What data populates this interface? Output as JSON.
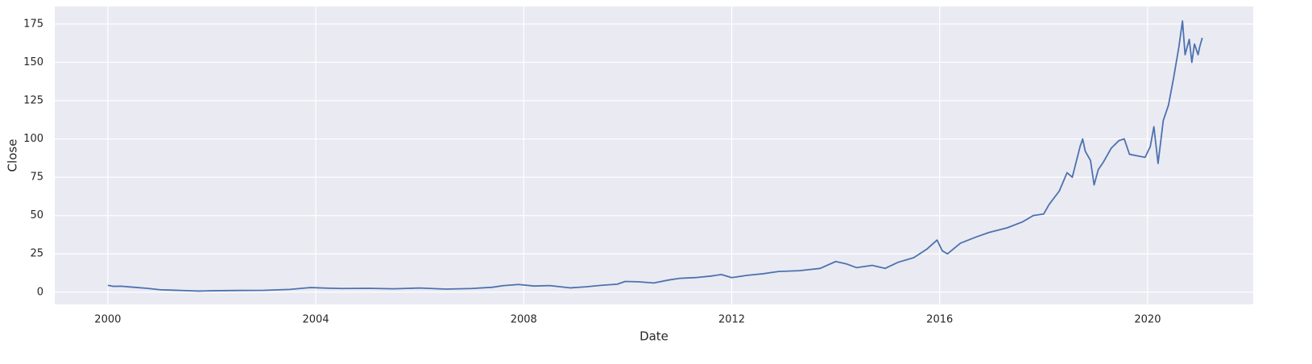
{
  "chart_data": {
    "type": "line",
    "x_label": "Date",
    "y_label": "Close",
    "x": [
      2000.0,
      2000.1,
      2000.25,
      2000.5,
      2000.75,
      2001.0,
      2001.25,
      2001.5,
      2001.75,
      2002.0,
      2002.5,
      2003.0,
      2003.5,
      2003.9,
      2004.25,
      2004.5,
      2005.0,
      2005.5,
      2006.0,
      2006.5,
      2007.0,
      2007.4,
      2007.6,
      2007.9,
      2008.2,
      2008.5,
      2008.9,
      2009.2,
      2009.5,
      2009.8,
      2009.95,
      2010.2,
      2010.5,
      2010.8,
      2011.0,
      2011.3,
      2011.6,
      2011.8,
      2012.0,
      2012.3,
      2012.6,
      2012.9,
      2013.3,
      2013.7,
      2014.0,
      2014.2,
      2014.4,
      2014.7,
      2014.95,
      2015.2,
      2015.5,
      2015.75,
      2015.95,
      2016.05,
      2016.15,
      2016.4,
      2016.7,
      2016.95,
      2017.3,
      2017.6,
      2017.8,
      2018.0,
      2018.1,
      2018.3,
      2018.45,
      2018.55,
      2018.7,
      2018.75,
      2018.8,
      2018.9,
      2018.97,
      2019.05,
      2019.15,
      2019.3,
      2019.45,
      2019.55,
      2019.65,
      2019.8,
      2019.95,
      2020.05,
      2020.12,
      2020.2,
      2020.3,
      2020.4,
      2020.5,
      2020.6,
      2020.67,
      2020.72,
      2020.8,
      2020.85,
      2020.9,
      2020.97,
      2021.0,
      2021.05
    ],
    "series": [
      {
        "name": "Close",
        "color": "#4c72b0",
        "values": [
          4.5,
          3.8,
          3.9,
          3.2,
          2.5,
          1.6,
          1.3,
          1.0,
          0.7,
          0.9,
          1.1,
          1.2,
          1.8,
          3.0,
          2.6,
          2.4,
          2.5,
          2.2,
          2.7,
          2.0,
          2.4,
          3.2,
          4.2,
          5.0,
          4.0,
          4.3,
          2.8,
          3.5,
          4.5,
          5.2,
          7.0,
          6.8,
          6.0,
          8.0,
          9.0,
          9.5,
          10.5,
          11.5,
          9.5,
          11.0,
          12.0,
          13.5,
          14.0,
          15.5,
          20.0,
          18.5,
          16.0,
          17.5,
          15.5,
          19.5,
          22.5,
          28,
          34,
          27,
          25,
          32,
          36,
          39,
          42,
          46,
          50,
          51,
          57,
          66,
          78,
          75,
          95,
          100,
          92,
          86,
          70,
          80,
          85,
          94,
          99,
          100,
          90,
          89,
          88,
          95,
          108,
          84,
          112,
          122,
          140,
          160,
          177,
          155,
          165,
          150,
          162,
          155,
          160,
          166
        ]
      }
    ],
    "xlim": [
      1998.98,
      2022.03
    ],
    "xticks": [
      2000,
      2004,
      2008,
      2012,
      2016,
      2020
    ],
    "ylim": [
      -8,
      186.5
    ],
    "yticks": [
      0,
      25,
      50,
      75,
      100,
      125,
      150,
      175
    ],
    "grid": true,
    "background": "#eaeaf2"
  }
}
